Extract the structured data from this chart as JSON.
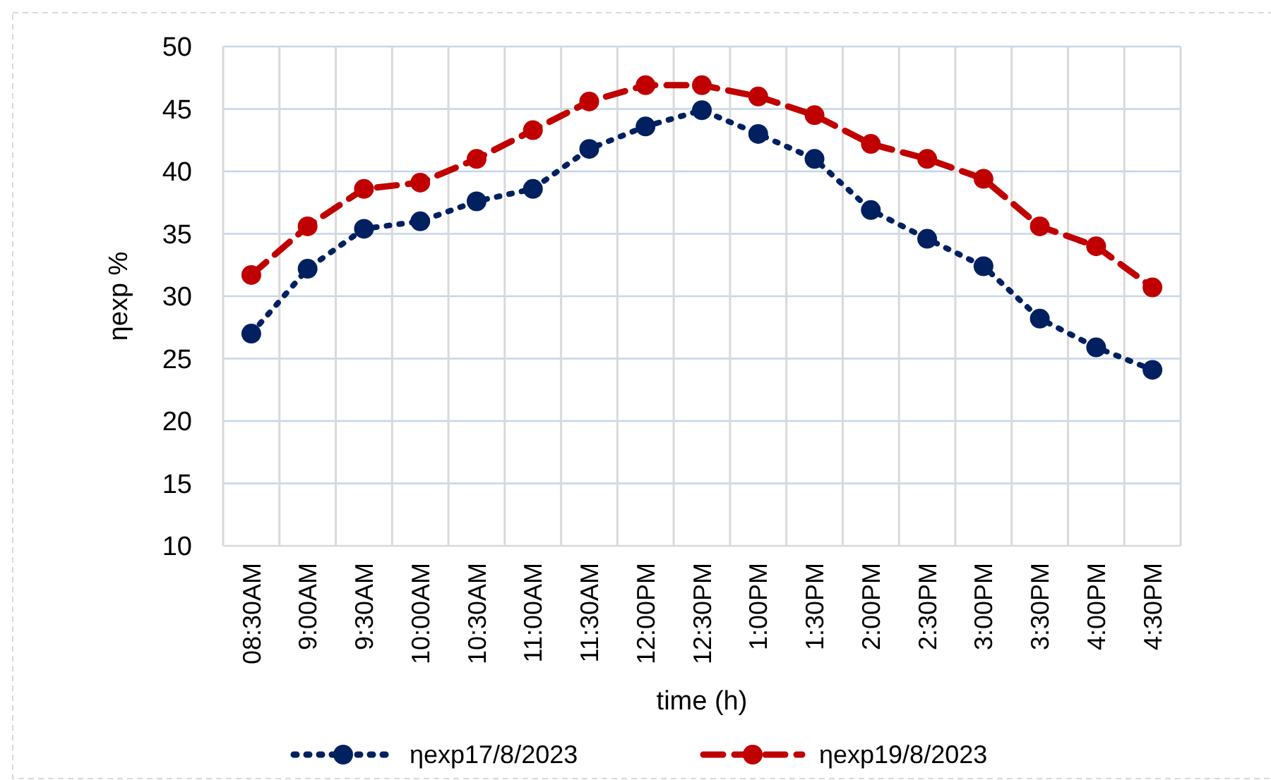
{
  "chart_data": {
    "type": "line",
    "xlabel": "time (h)",
    "ylabel": "ηexp %",
    "categories": [
      "08:30AM",
      "9:00AM",
      "9:30AM",
      "10:00AM",
      "10:30AM",
      "11:00AM",
      "11:30AM",
      "12:00PM",
      "12:30PM",
      "1:00PM",
      "1:30PM",
      "2:00PM",
      "2:30PM",
      "3:00PM",
      "3:30PM",
      "4:00PM",
      "4:30PM"
    ],
    "series": [
      {
        "name": "ηexp17/8/2023",
        "color": "#002060",
        "line_style": "dotted",
        "values": [
          27.0,
          32.2,
          35.4,
          36.0,
          37.6,
          38.6,
          41.8,
          43.6,
          44.9,
          43.0,
          41.0,
          36.9,
          34.6,
          32.4,
          28.2,
          25.9,
          24.1
        ]
      },
      {
        "name": "ηexp19/8/2023",
        "color": "#c00000",
        "line_style": "dashed",
        "values": [
          31.7,
          35.6,
          38.6,
          39.1,
          41.0,
          43.3,
          45.6,
          46.9,
          46.9,
          46.0,
          44.5,
          42.2,
          41.0,
          39.4,
          35.6,
          34.0,
          30.7
        ]
      }
    ],
    "ylim": [
      10,
      50
    ],
    "yticks": [
      10,
      15,
      20,
      25,
      30,
      35,
      40,
      45,
      50
    ],
    "grid": true,
    "legend": "bottom",
    "marker": "circle"
  }
}
